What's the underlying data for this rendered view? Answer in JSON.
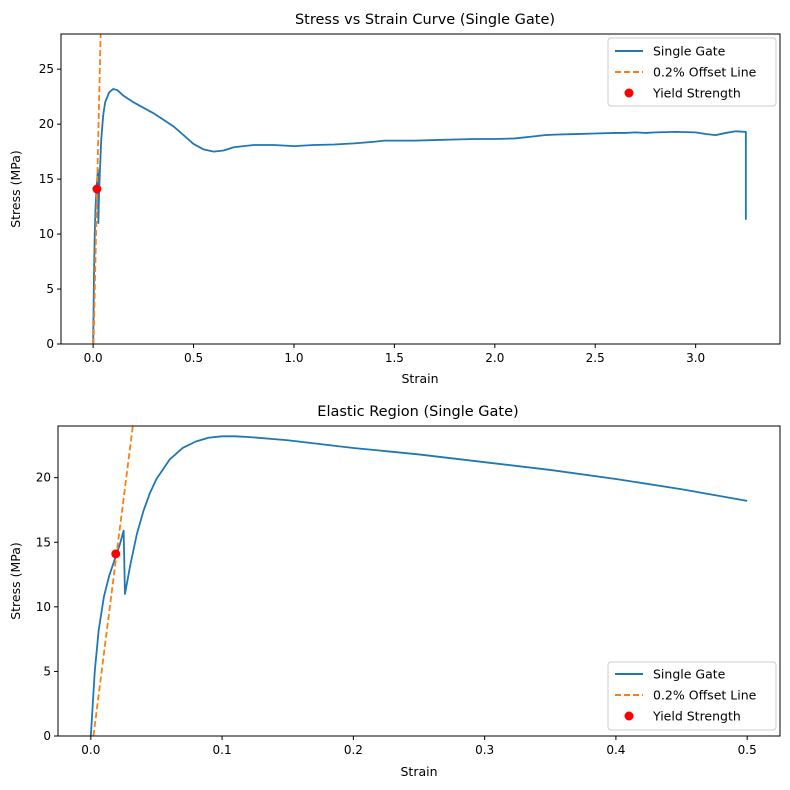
{
  "chart_data": [
    {
      "type": "line",
      "title": "Stress vs Strain Curve (Single Gate)",
      "xlabel": "Strain",
      "ylabel": "Stress (MPa)",
      "xlim": [
        -0.16,
        3.42
      ],
      "ylim": [
        0,
        28.2
      ],
      "xticks": [
        0.0,
        0.5,
        1.0,
        1.5,
        2.0,
        2.5,
        3.0
      ],
      "xtick_labels": [
        "0.0",
        "0.5",
        "1.0",
        "1.5",
        "2.0",
        "2.5",
        "3.0"
      ],
      "yticks": [
        0,
        5,
        10,
        15,
        20,
        25
      ],
      "ytick_labels": [
        "0",
        "5",
        "10",
        "15",
        "20",
        "25"
      ],
      "grid": false,
      "legend_position": "top-right",
      "series": [
        {
          "name": "Single Gate",
          "kind": "line",
          "color": "#1f77b4",
          "x": [
            0.0,
            0.004,
            0.008,
            0.012,
            0.016,
            0.02,
            0.024,
            0.026,
            0.03,
            0.04,
            0.05,
            0.06,
            0.08,
            0.1,
            0.12,
            0.15,
            0.2,
            0.3,
            0.4,
            0.45,
            0.5,
            0.55,
            0.6,
            0.65,
            0.7,
            0.8,
            0.9,
            1.0,
            1.1,
            1.2,
            1.3,
            1.4,
            1.45,
            1.5,
            1.6,
            1.7,
            1.8,
            1.9,
            2.0,
            2.1,
            2.2,
            2.25,
            2.3,
            2.4,
            2.5,
            2.6,
            2.65,
            2.7,
            2.75,
            2.8,
            2.9,
            3.0,
            3.05,
            3.1,
            3.15,
            3.2,
            3.25,
            3.25
          ],
          "y": [
            0.0,
            6.0,
            10.0,
            12.5,
            13.8,
            15.0,
            15.9,
            11.0,
            14.0,
            18.5,
            20.8,
            22.0,
            22.9,
            23.2,
            23.1,
            22.6,
            22.0,
            21.0,
            19.8,
            19.0,
            18.2,
            17.7,
            17.5,
            17.6,
            17.9,
            18.1,
            18.1,
            18.0,
            18.1,
            18.15,
            18.25,
            18.4,
            18.5,
            18.5,
            18.5,
            18.55,
            18.6,
            18.65,
            18.65,
            18.7,
            18.9,
            19.0,
            19.05,
            19.1,
            19.15,
            19.2,
            19.2,
            19.25,
            19.2,
            19.25,
            19.3,
            19.25,
            19.1,
            19.0,
            19.2,
            19.35,
            19.3,
            11.3
          ]
        },
        {
          "name": "0.2% Offset Line",
          "kind": "dashed-line",
          "color": "#ff7f0e",
          "x": [
            0.002,
            0.0395
          ],
          "y": [
            0.0,
            30.0
          ]
        },
        {
          "name": "Yield Strength",
          "kind": "scatter",
          "color": "#ff0000",
          "x": [
            0.019
          ],
          "y": [
            14.1
          ]
        }
      ]
    },
    {
      "type": "line",
      "title": "Elastic Region (Single Gate)",
      "xlabel": "Strain",
      "ylabel": "Stress (MPa)",
      "xlim": [
        -0.025,
        0.525
      ],
      "ylim": [
        0,
        24.0
      ],
      "xticks": [
        0.0,
        0.1,
        0.2,
        0.3,
        0.4,
        0.5
      ],
      "xtick_labels": [
        "0.0",
        "0.1",
        "0.2",
        "0.3",
        "0.4",
        "0.5"
      ],
      "yticks": [
        0,
        5,
        10,
        15,
        20
      ],
      "ytick_labels": [
        "0",
        "5",
        "10",
        "15",
        "20"
      ],
      "grid": false,
      "legend_position": "bottom-right",
      "series": [
        {
          "name": "Single Gate",
          "kind": "line",
          "color": "#1f77b4",
          "x": [
            0.0,
            0.003,
            0.006,
            0.01,
            0.014,
            0.018,
            0.022,
            0.025,
            0.026,
            0.03,
            0.035,
            0.04,
            0.045,
            0.05,
            0.06,
            0.07,
            0.08,
            0.09,
            0.1,
            0.11,
            0.12,
            0.15,
            0.2,
            0.25,
            0.3,
            0.35,
            0.4,
            0.45,
            0.5
          ],
          "y": [
            0.0,
            5.0,
            8.2,
            10.8,
            12.4,
            13.6,
            14.8,
            15.9,
            11.0,
            13.2,
            15.6,
            17.4,
            18.8,
            19.9,
            21.4,
            22.3,
            22.8,
            23.1,
            23.2,
            23.2,
            23.15,
            22.9,
            22.3,
            21.8,
            21.2,
            20.6,
            19.9,
            19.1,
            18.2
          ]
        },
        {
          "name": "0.2% Offset Line",
          "kind": "dashed-line",
          "color": "#ff7f0e",
          "x": [
            0.002,
            0.0395
          ],
          "y": [
            0.0,
            30.0
          ]
        },
        {
          "name": "Yield Strength",
          "kind": "scatter",
          "color": "#ff0000",
          "x": [
            0.019
          ],
          "y": [
            14.1
          ]
        }
      ]
    }
  ]
}
